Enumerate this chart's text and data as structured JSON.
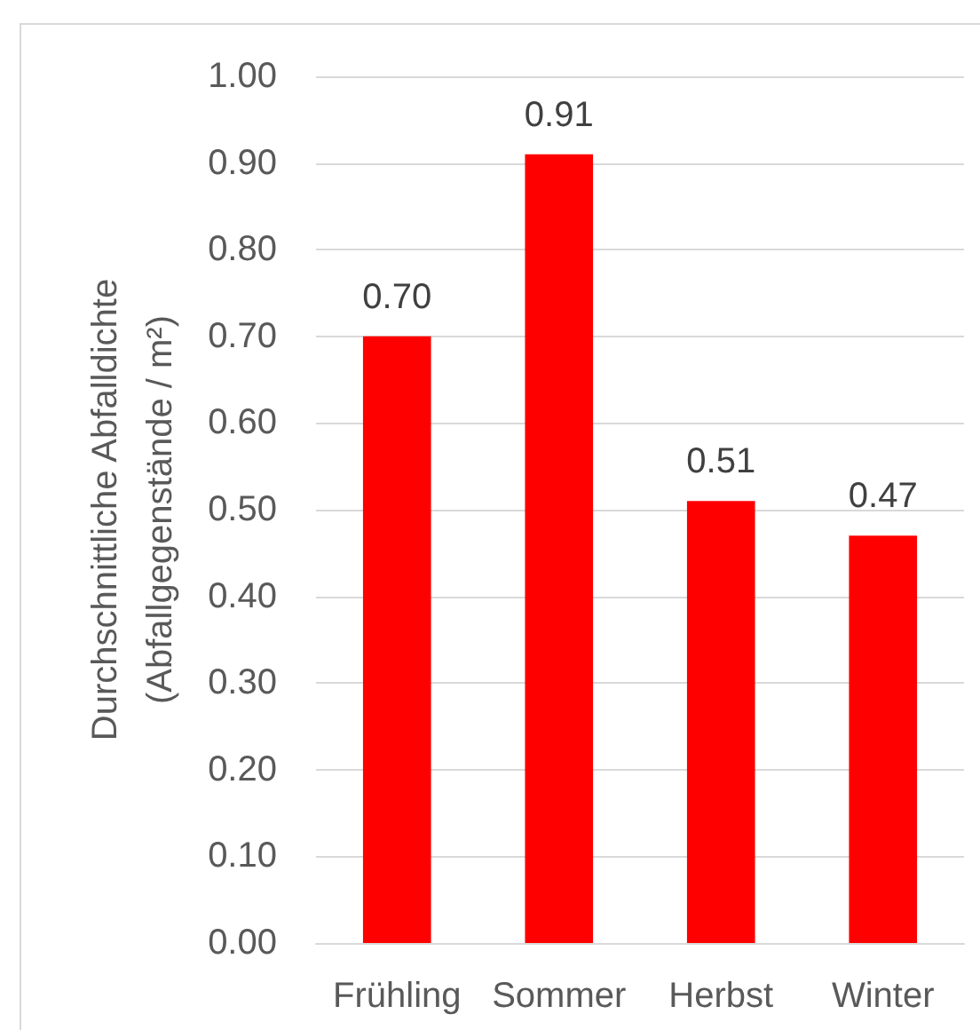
{
  "chart_data": {
    "type": "bar",
    "categories": [
      "Frühling",
      "Sommer",
      "Herbst",
      "Winter"
    ],
    "values": [
      0.7,
      0.91,
      0.51,
      0.47
    ],
    "value_labels": [
      "0.70",
      "0.91",
      "0.51",
      "0.47"
    ],
    "color": "#ff0000",
    "ylabel": "Durchschnittliche Abfalldichte\n(Abfallgegenstände / m²)",
    "ylim": [
      0,
      1
    ],
    "yticks": [
      {
        "value": 0,
        "label": "0.00"
      },
      {
        "value": 0.1,
        "label": "0.10"
      },
      {
        "value": 0.2,
        "label": "0.20"
      },
      {
        "value": 0.3,
        "label": "0.30"
      },
      {
        "value": 0.4,
        "label": "0.40"
      },
      {
        "value": 0.5,
        "label": "0.50"
      },
      {
        "value": 0.6,
        "label": "0.60"
      },
      {
        "value": 0.7,
        "label": "0.70"
      },
      {
        "value": 0.8,
        "label": "0.80"
      },
      {
        "value": 0.9,
        "label": "0.90"
      },
      {
        "value": 1,
        "label": "1.00"
      }
    ],
    "grid": "y"
  }
}
